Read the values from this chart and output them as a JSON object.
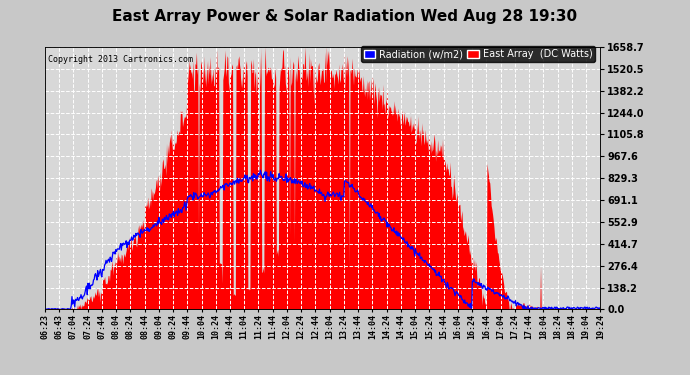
{
  "title": "East Array Power & Solar Radiation Wed Aug 28 19:30",
  "copyright": "Copyright 2013 Cartronics.com",
  "background_color": "#c8c8c8",
  "plot_bg_color": "#d8d8d8",
  "yticks": [
    0.0,
    138.2,
    276.4,
    414.7,
    552.9,
    691.1,
    829.3,
    967.6,
    1105.8,
    1244.0,
    1382.2,
    1520.5,
    1658.7
  ],
  "ymax": 1658.7,
  "legend_radiation_label": "Radiation (w/m2)",
  "legend_array_label": "East Array  (DC Watts)",
  "radiation_color": "#0000ff",
  "array_color": "#ff0000",
  "xtick_labels": [
    "06:23",
    "06:43",
    "07:04",
    "07:24",
    "07:44",
    "08:04",
    "08:24",
    "08:44",
    "09:04",
    "09:24",
    "09:44",
    "10:04",
    "10:24",
    "10:44",
    "11:04",
    "11:24",
    "11:44",
    "12:04",
    "12:24",
    "12:44",
    "13:04",
    "13:24",
    "13:44",
    "14:04",
    "14:24",
    "14:44",
    "15:04",
    "15:24",
    "15:44",
    "16:04",
    "16:24",
    "16:44",
    "17:04",
    "17:24",
    "17:44",
    "18:04",
    "18:24",
    "18:44",
    "19:04",
    "19:24"
  ],
  "title_fontsize": 11,
  "tick_fontsize": 6,
  "copyright_fontsize": 6,
  "n_points": 800
}
